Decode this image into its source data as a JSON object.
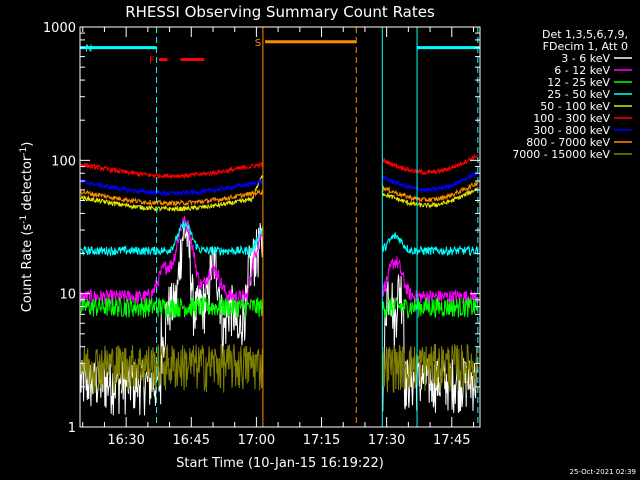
{
  "chart_data": {
    "type": "line",
    "title": "RHESSI Observing Summary Count Rates",
    "xlabel": "Start Time (10-Jan-15 16:19:22)",
    "ylabel_main": "Count Rate (s",
    "ylabel_exp1": "-1",
    "ylabel_mid": " detector",
    "ylabel_exp2": "-1",
    "ylabel_end": ")",
    "y_scale": "log",
    "ylim": [
      1,
      1000
    ],
    "xlim_minutes": [
      19.37,
      111.5
    ],
    "x_tick_labels": [
      "16:30",
      "16:45",
      "17:00",
      "17:15",
      "17:30",
      "17:45"
    ],
    "x_tick_minutes": [
      30,
      45,
      60,
      75,
      90,
      105
    ],
    "y_tick_labels": [
      "1",
      "10",
      "100",
      "1000"
    ],
    "y_tick_values": [
      1,
      10,
      100,
      1000
    ],
    "legend_header": [
      "Det 1,3,5,6,7,9,",
      "FDecim 1, Att 0"
    ],
    "legend_position": "right",
    "series": [
      {
        "name": "3 - 6 keV",
        "color": "#ffffff",
        "base": 2.5
      },
      {
        "name": "6 - 12 keV",
        "color": "#ff00ff",
        "base": 9.5
      },
      {
        "name": "12 - 25 keV",
        "color": "#00ff00",
        "base": 8
      },
      {
        "name": "25 - 50 keV",
        "color": "#00ffff",
        "base": 21
      },
      {
        "name": "50 - 100 keV",
        "color": "#e6e600",
        "base": 48
      },
      {
        "name": "100 - 300 keV",
        "color": "#ff0000",
        "base": 85
      },
      {
        "name": "300 - 800 keV",
        "color": "#0000ff",
        "base": 63
      },
      {
        "name": "800 - 7000 keV",
        "color": "#ff8c00",
        "base": 53
      },
      {
        "name": "7000 - 15000 keV",
        "color": "#808000",
        "base": 3
      }
    ],
    "data_gap_minutes": [
      61.5,
      89.0
    ],
    "flags": [
      {
        "label": "N",
        "color": "#00ffff",
        "segments": [
          [
            19.37,
            37.0
          ],
          [
            97.0,
            111.5
          ]
        ],
        "level": 700
      },
      {
        "label": "F",
        "color": "#ff0000",
        "segments": [
          [
            37.5,
            39.5
          ],
          [
            42.5,
            48.0
          ]
        ],
        "level": 570
      },
      {
        "label": "S",
        "color": "#ff8c00",
        "segments": [
          [
            62.0,
            83.0
          ]
        ],
        "level": 775
      }
    ],
    "vlines": [
      {
        "minute": 19.37,
        "color": "#00ffff",
        "style": "solid"
      },
      {
        "minute": 37.0,
        "color": "#00ffff",
        "style": "dashed"
      },
      {
        "minute": 61.5,
        "color": "#ff8c00",
        "style": "solid"
      },
      {
        "minute": 83.0,
        "color": "#ff8c00",
        "style": "dashed"
      },
      {
        "minute": 89.0,
        "color": "#00ffff",
        "style": "solid"
      },
      {
        "minute": 97.0,
        "color": "#00ffff",
        "style": "solid"
      },
      {
        "minute": 111.0,
        "color": "#00ffff",
        "style": "dashed"
      }
    ]
  },
  "footer_stamp": "25-Oct-2021 02:39"
}
